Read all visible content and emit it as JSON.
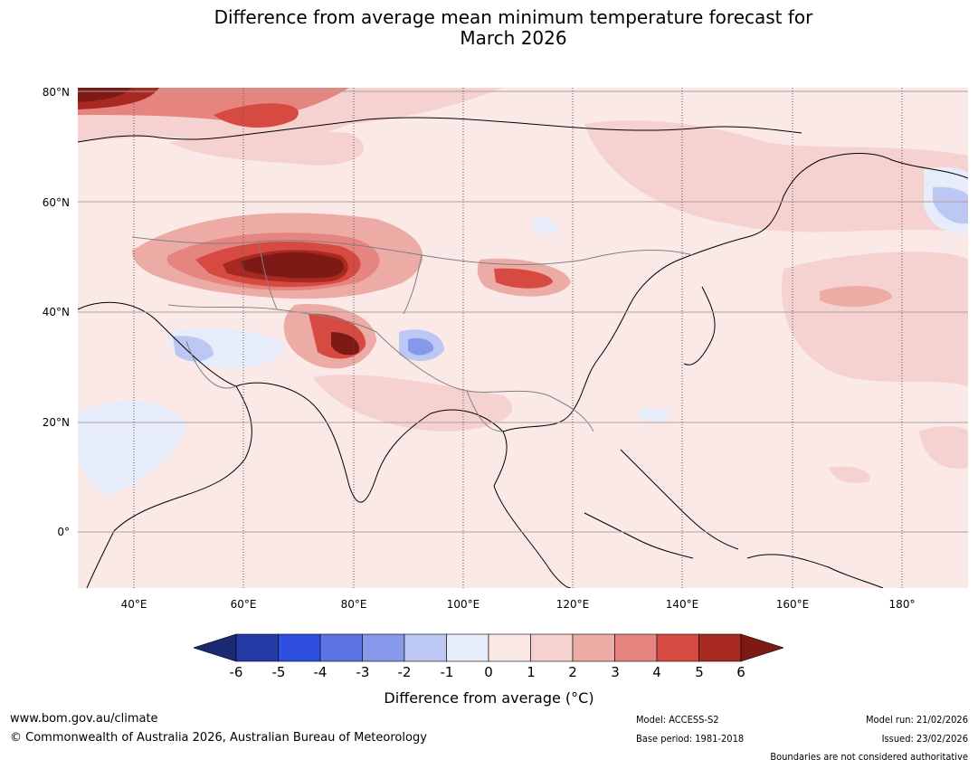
{
  "title": {
    "line1": "Difference from average mean minimum temperature forecast for",
    "line2": "March 2026"
  },
  "latitude_labels": [
    "80°N",
    "60°N",
    "40°N",
    "20°N",
    "0°"
  ],
  "longitude_labels": [
    "40°E",
    "60°E",
    "80°E",
    "100°E",
    "120°E",
    "140°E",
    "160°E",
    "180°"
  ],
  "colorbar": {
    "ticks": [
      "-6",
      "-5",
      "-4",
      "-3",
      "-2",
      "-1",
      "0",
      "1",
      "2",
      "3",
      "4",
      "5",
      "6"
    ],
    "label": "Difference from average (°C)",
    "colors": {
      "below_min": "#1b2a75",
      "bins": [
        "#263aa8",
        "#2f4fe0",
        "#5c73e4",
        "#8698ea",
        "#bdc7f3",
        "#e7ecfb",
        "#fbe9e7",
        "#f5d2cf",
        "#edaba6",
        "#e6857f",
        "#d64a41",
        "#a82822"
      ],
      "above_max": "#7d1a16"
    }
  },
  "footer": {
    "website": "www.bom.gov.au/climate",
    "copyright": "© Commonwealth of Australia 2026, Australian Bureau of Meteorology",
    "model": "Model: ACCESS-S2",
    "base_period": "Base period: 1981-2018",
    "model_run": "Model run: 21/02/2026",
    "issued": "Issued: 23/02/2026",
    "disclaimer": "Boundaries are not considered authoritative"
  }
}
